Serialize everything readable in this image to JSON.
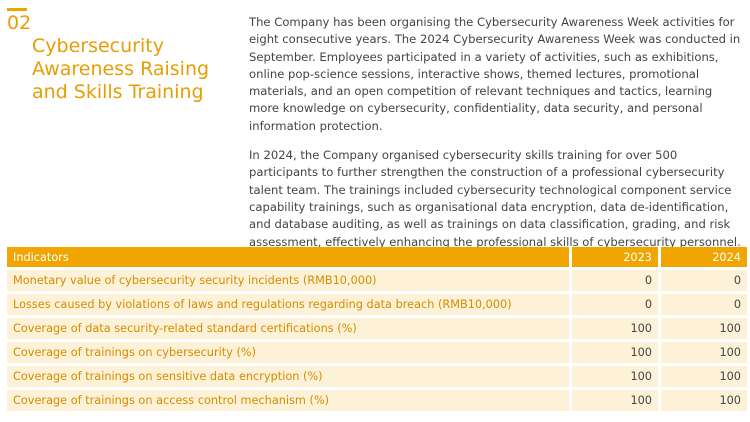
{
  "heading": {
    "number": "02",
    "title_lines": [
      "Cybersecurity",
      "Awareness Raising",
      "and Skills Training"
    ]
  },
  "paragraphs": [
    "The Company has been organising the Cybersecurity Awareness Week activities for eight consecutive years. The 2024 Cybersecurity Awareness Week was conducted in September. Employees participated in a variety of activities, such as exhibitions, online pop-science sessions, interactive shows, themed lectures, promotional materials, and an open competition of relevant techniques and tactics, learning more knowledge on cybersecurity, confidentiality, data security, and personal information protection.",
    "In 2024, the Company organised cybersecurity skills training for over 500 participants to further strengthen the construction of a professional cybersecurity talent team. The trainings included cybersecurity technological component service capability trainings, such as organisational data encryption, data de-identification, and database auditing, as well as trainings on data classification, grading, and risk assessment, effectively enhancing the professional skills of cybersecurity personnel."
  ],
  "table": {
    "header": [
      "Indicators",
      "2023",
      "2024"
    ],
    "rows": [
      [
        "Monetary value of cybersecurity security incidents (RMB10,000)",
        0,
        0
      ],
      [
        "Losses caused by violations of laws and regulations regarding data breach (RMB10,000)",
        0,
        0
      ],
      [
        "Coverage of data security-related standard certifications (%)",
        100,
        100
      ],
      [
        "Coverage of trainings on cybersecurity (%)",
        100,
        100
      ],
      [
        "Coverage of trainings on sensitive data encryption (%)",
        100,
        100
      ],
      [
        "Coverage of trainings on access control mechanism (%)",
        100,
        100
      ]
    ]
  }
}
